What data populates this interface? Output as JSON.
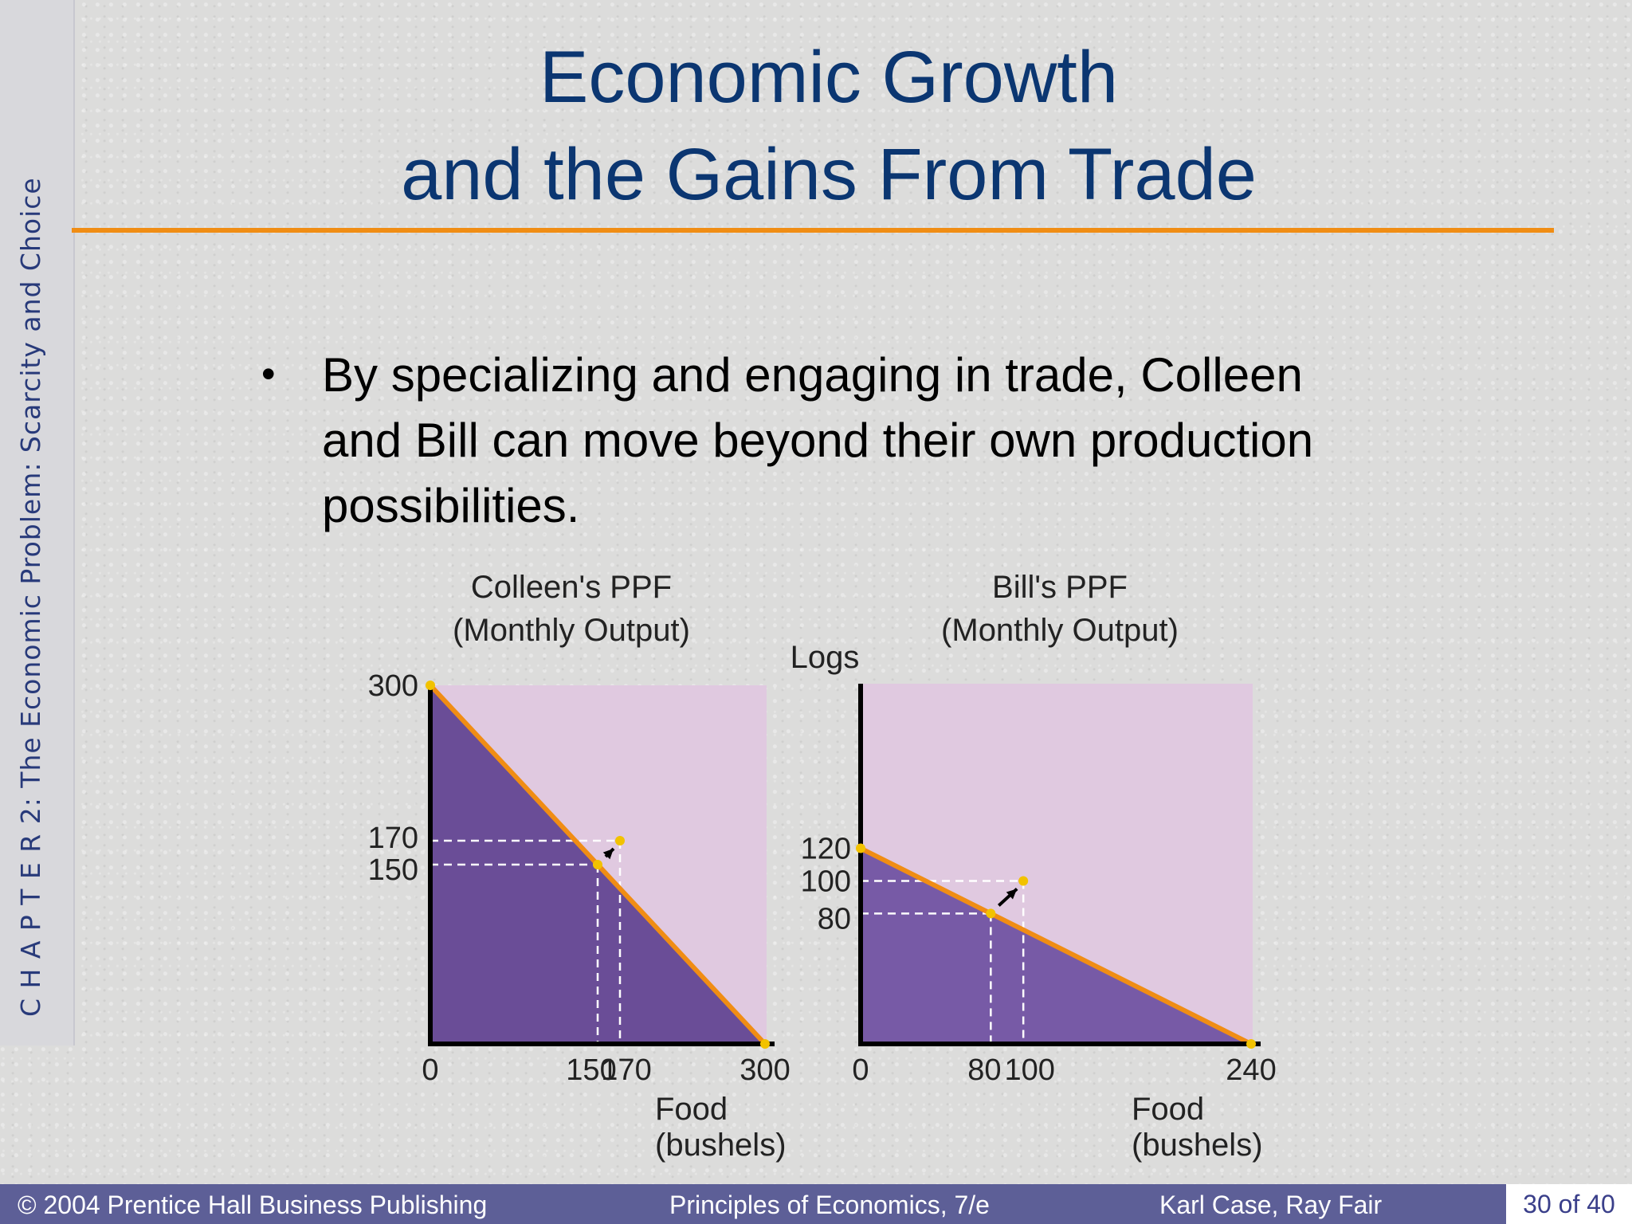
{
  "slide": {
    "side_label": "C H A P T E R  2:  The Economic Problem:  Scarcity and Choice",
    "title_line1": "Economic Growth",
    "title_line2": "and the Gains From Trade",
    "bullet": "By specializing and engaging in trade, Colleen and Bill can move beyond their own production possibilities."
  },
  "footer": {
    "publisher": "© 2004 Prentice Hall Business Publishing",
    "book": "Principles of Economics, 7/e",
    "authors": "Karl Case, Ray Fair",
    "page": "30 of 40"
  },
  "colors": {
    "title": "#0b3671",
    "rule": "#f08d14",
    "footer_bg": "#5d5f97",
    "plot_bg": "#e0c9e0",
    "region_colleen": "#6a4d97",
    "region_bill": "#775aa6",
    "ppf_line": "#f08d14",
    "point": "#f2c200"
  },
  "chart_data": [
    {
      "type": "line",
      "title": "Colleen's PPF",
      "subtitle": "(Monthly Output)",
      "xlabel": "Food (bushels)",
      "xlabel_line1": "Food",
      "xlabel_line2": "(bushels)",
      "ylabel": "",
      "xlim": [
        0,
        300
      ],
      "ylim": [
        0,
        300
      ],
      "x_ticks": [
        0,
        150,
        170,
        300
      ],
      "x_tick_labels": [
        "0",
        "150",
        "170",
        "300"
      ],
      "y_ticks": [
        150,
        170,
        300
      ],
      "y_tick_labels": [
        "150",
        "170",
        "300"
      ],
      "ppf": [
        {
          "x": 0,
          "y": 300
        },
        {
          "x": 300,
          "y": 0
        }
      ],
      "production_point": {
        "x": 150,
        "y": 150
      },
      "trade_point": {
        "x": 170,
        "y": 170
      }
    },
    {
      "type": "line",
      "title": "Bill's PPF",
      "subtitle": "(Monthly Output)",
      "xlabel": "Food (bushels)",
      "xlabel_line1": "Food",
      "xlabel_line2": "(bushels)",
      "ylabel": "Logs",
      "xlim": [
        0,
        240
      ],
      "ylim": [
        0,
        220
      ],
      "x_ticks": [
        0,
        80,
        100,
        240
      ],
      "x_tick_labels": [
        "0",
        "80",
        "100",
        "240"
      ],
      "y_ticks": [
        80,
        100,
        120
      ],
      "y_tick_labels": [
        "80",
        "100",
        "120"
      ],
      "ppf": [
        {
          "x": 0,
          "y": 120
        },
        {
          "x": 240,
          "y": 0
        }
      ],
      "production_point": {
        "x": 80,
        "y": 80
      },
      "trade_point": {
        "x": 100,
        "y": 100
      }
    }
  ]
}
